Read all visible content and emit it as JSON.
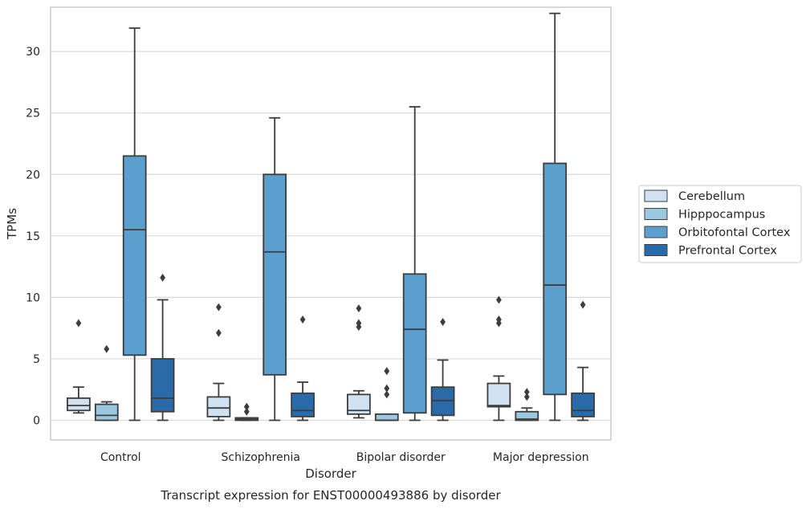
{
  "chart_data": {
    "type": "box",
    "caption": "Transcript expression for ENST00000493886 by disorder",
    "xlabel": "Disorder",
    "ylabel": "TPMs",
    "categories": [
      "Control",
      "Schizophrenia",
      "Bipolar disorder",
      "Major depression"
    ],
    "ylim": [
      -1.6,
      33.6
    ],
    "yticks": [
      0,
      5,
      10,
      15,
      20,
      25,
      30
    ],
    "grid": "horizontal",
    "legend_position": "right",
    "series": [
      {
        "name": "Cerebellum",
        "color": "#d0e1f2",
        "boxes": [
          {
            "whislo": 0.6,
            "q1": 0.8,
            "med": 1.2,
            "q3": 1.8,
            "whishi": 2.7,
            "fliers": [
              7.9
            ]
          },
          {
            "whislo": 0.0,
            "q1": 0.3,
            "med": 1.0,
            "q3": 1.9,
            "whishi": 3.0,
            "fliers": [
              7.1,
              9.2
            ]
          },
          {
            "whislo": 0.2,
            "q1": 0.5,
            "med": 0.8,
            "q3": 2.1,
            "whishi": 2.4,
            "fliers": [
              7.6,
              7.9,
              9.1
            ]
          },
          {
            "whislo": 0.0,
            "q1": 1.1,
            "med": 1.2,
            "q3": 3.0,
            "whishi": 3.6,
            "fliers": [
              7.9,
              8.2,
              9.8
            ]
          }
        ]
      },
      {
        "name": "Hipppocampus",
        "color": "#9ac8e0",
        "boxes": [
          {
            "whislo": 0.0,
            "q1": 0.0,
            "med": 0.4,
            "q3": 1.3,
            "whishi": 1.5,
            "fliers": [
              5.8
            ]
          },
          {
            "whislo": 0.0,
            "q1": 0.0,
            "med": 0.1,
            "q3": 0.2,
            "whishi": 0.2,
            "fliers": [
              0.7,
              1.1
            ]
          },
          {
            "whislo": 0.0,
            "q1": 0.0,
            "med": 0.0,
            "q3": 0.5,
            "whishi": 0.5,
            "fliers": [
              2.1,
              2.6,
              4.0
            ]
          },
          {
            "whislo": 0.0,
            "q1": 0.0,
            "med": 0.1,
            "q3": 0.7,
            "whishi": 1.0,
            "fliers": [
              1.9,
              2.3
            ]
          }
        ]
      },
      {
        "name": "Orbitofontal Cortex",
        "color": "#5a9fcd",
        "boxes": [
          {
            "whislo": 0.0,
            "q1": 5.3,
            "med": 15.5,
            "q3": 21.5,
            "whishi": 31.9,
            "fliers": []
          },
          {
            "whislo": 0.0,
            "q1": 3.7,
            "med": 13.7,
            "q3": 20.0,
            "whishi": 24.6,
            "fliers": []
          },
          {
            "whislo": 0.0,
            "q1": 0.6,
            "med": 7.4,
            "q3": 11.9,
            "whishi": 25.5,
            "fliers": []
          },
          {
            "whislo": 0.0,
            "q1": 2.1,
            "med": 11.0,
            "q3": 20.9,
            "whishi": 33.1,
            "fliers": []
          }
        ]
      },
      {
        "name": "Prefrontal Cortex",
        "color": "#2a6aa8",
        "boxes": [
          {
            "whislo": 0.0,
            "q1": 0.7,
            "med": 1.8,
            "q3": 5.0,
            "whishi": 9.8,
            "fliers": [
              11.6
            ]
          },
          {
            "whislo": 0.0,
            "q1": 0.3,
            "med": 0.8,
            "q3": 2.2,
            "whishi": 3.1,
            "fliers": [
              8.2
            ]
          },
          {
            "whislo": 0.0,
            "q1": 0.4,
            "med": 1.6,
            "q3": 2.7,
            "whishi": 4.9,
            "fliers": [
              8.0
            ]
          },
          {
            "whislo": 0.0,
            "q1": 0.3,
            "med": 0.8,
            "q3": 2.2,
            "whishi": 4.3,
            "fliers": [
              9.4
            ]
          }
        ]
      }
    ]
  }
}
